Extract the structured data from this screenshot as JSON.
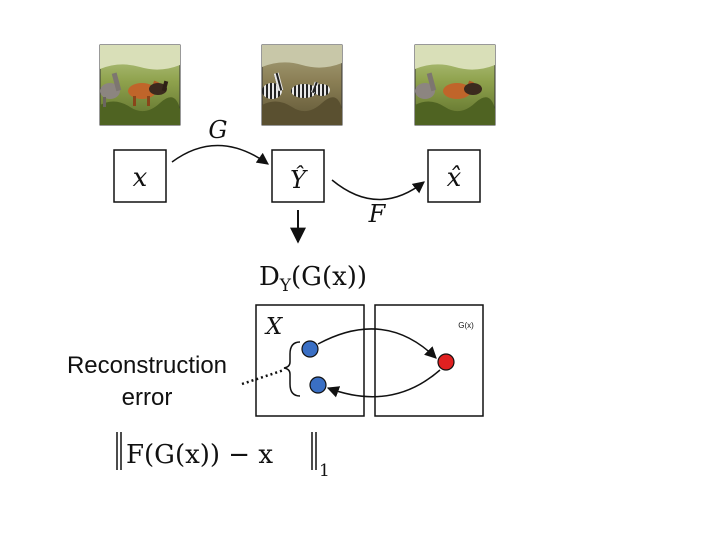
{
  "images": {
    "input": {
      "name": "horses-photo",
      "watermark": ""
    },
    "translated": {
      "name": "zebras-photo",
      "watermark": ""
    },
    "reconstructed": {
      "name": "horses-photo-reconstructed",
      "watermark": ""
    }
  },
  "nodes": {
    "x": "x",
    "y_hat": "Ŷ",
    "x_hat": "x̂"
  },
  "mappings": {
    "G": "G",
    "F": "F"
  },
  "discriminator": {
    "D": "D",
    "sub": "Y",
    "arg": "(G(x))"
  },
  "domain_boxes": {
    "left_label": "X",
    "right_label": "G(x)"
  },
  "reconstruction": {
    "line1": "Reconstruction",
    "line2": "error"
  },
  "loss": {
    "inner": "F(G(x)) − x",
    "subscript": "1"
  },
  "colors": {
    "ink": "#111111",
    "blue_point": "#3a6fc4",
    "red_point": "#e02020",
    "grass": "#7a8f3a",
    "sky": "#c9d4a0"
  }
}
